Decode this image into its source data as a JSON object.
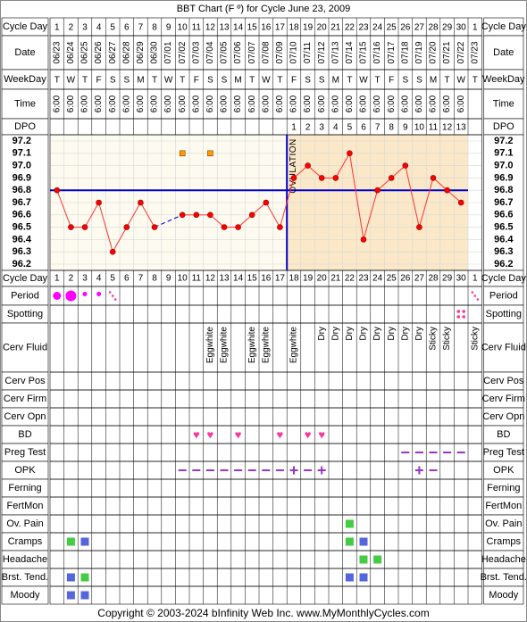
{
  "title": "BBT Chart (F º) for Cycle June 23, 2009",
  "copyright": "Copyright © 2003-2024 bInfinity Web Inc.    www.MyMonthlyCycles.com",
  "row_labels": {
    "cycle_day": "Cycle Day",
    "date": "Date",
    "weekday": "WeekDay",
    "time": "Time",
    "dpo": "DPO",
    "period": "Period",
    "spotting": "Spotting",
    "cerv_fluid": "Cerv Fluid",
    "cerv_pos": "Cerv Pos",
    "cerv_firm": "Cerv Firm",
    "cerv_opn": "Cerv Opn",
    "bd": "BD",
    "preg_test": "Preg Test",
    "opk": "OPK",
    "ferning": "Ferning",
    "fertmon": "FertMon",
    "ov_pain": "Ov. Pain",
    "cramps": "Cramps",
    "headache": "Headache",
    "brst_tend": "Brst. Tend.",
    "moody": "Moody"
  },
  "colors": {
    "grid": "#000000",
    "pre_ov_bg": "#fdfbf0",
    "post_ov_bg": "#fae8c8",
    "coverline": "#0000cc",
    "temp_line": "#ff3333",
    "temp_dot": "#ff0000",
    "period": "#ff00ff",
    "spotting": "#ff3399",
    "heart": "#ff3399",
    "opk": "#9933cc",
    "preg_test": "#9933cc",
    "green": "#44cc44",
    "blue": "#5566dd",
    "label_bg": "#ffffff"
  },
  "chart_data": {
    "type": "line",
    "cycle_days": [
      "1",
      "2",
      "3",
      "4",
      "5",
      "6",
      "7",
      "8",
      "9",
      "10",
      "11",
      "12",
      "13",
      "14",
      "15",
      "16",
      "17",
      "18",
      "19",
      "20",
      "21",
      "22",
      "23",
      "24",
      "25",
      "26",
      "27",
      "28",
      "29",
      "30",
      "1"
    ],
    "dates": [
      "06/23",
      "06/24",
      "06/25",
      "06/26",
      "06/27",
      "06/28",
      "06/29",
      "06/30",
      "07/01",
      "07/02",
      "07/03",
      "07/04",
      "07/05",
      "07/06",
      "07/07",
      "07/08",
      "07/09",
      "07/10",
      "07/11",
      "07/12",
      "07/13",
      "07/14",
      "07/15",
      "07/16",
      "07/17",
      "07/18",
      "07/19",
      "07/20",
      "07/21",
      "07/22",
      "07/23"
    ],
    "weekdays": [
      "T",
      "W",
      "T",
      "F",
      "S",
      "S",
      "M",
      "T",
      "W",
      "T",
      "F",
      "S",
      "S",
      "M",
      "T",
      "W",
      "T",
      "F",
      "S",
      "S",
      "M",
      "T",
      "W",
      "T",
      "F",
      "S",
      "S",
      "M",
      "T",
      "W",
      "T"
    ],
    "times": [
      "6:00",
      "6:00",
      "6:00",
      "6:00",
      "6:00",
      "6:00",
      "6:00",
      "6:00",
      "6:00",
      "6:00",
      "6:00",
      "6:00",
      "6:00",
      "6:00",
      "6:00",
      "6:00",
      "6:00",
      "6:00",
      "6:00",
      "6:00",
      "6:00",
      "6:00",
      "6:00",
      "6:00",
      "6:00",
      "6:00",
      "6:00",
      "6:00",
      "6:00",
      "6:00",
      ""
    ],
    "dpo": [
      "",
      "",
      "",
      "",
      "",
      "",
      "",
      "",
      "",
      "",
      "",
      "",
      "",
      "",
      "",
      "",
      "",
      "1",
      "2",
      "3",
      "4",
      "5",
      "6",
      "7",
      "8",
      "9",
      "10",
      "11",
      "12",
      "13",
      ""
    ],
    "temp_axis_labels": [
      "97.2",
      "97.1",
      "97.0",
      "96.9",
      "96.8",
      "96.7",
      "96.6",
      "96.5",
      "96.4",
      "96.3",
      "96.2"
    ],
    "ylim": [
      96.2,
      97.2
    ],
    "temperatures": [
      96.8,
      96.5,
      96.5,
      96.7,
      96.3,
      96.5,
      96.7,
      96.5,
      null,
      96.6,
      96.6,
      96.6,
      96.5,
      96.5,
      96.6,
      96.7,
      96.5,
      96.9,
      97.0,
      96.9,
      96.9,
      97.1,
      96.4,
      96.8,
      96.9,
      97.0,
      96.5,
      96.9,
      96.8,
      96.7,
      null
    ],
    "dashed_segments": [
      [
        8,
        10
      ]
    ],
    "open_markers": [
      [
        9,
        97.1
      ],
      [
        11,
        97.1
      ]
    ],
    "coverline": 96.8,
    "ovulation_day_index": 16,
    "ovulation_label": "OVULATION",
    "period": [
      "big",
      "big",
      "small",
      "small",
      "tiny",
      "",
      "",
      "",
      "",
      "",
      "",
      "",
      "",
      "",
      "",
      "",
      "",
      "",
      "",
      "",
      "",
      "",
      "",
      "",
      "",
      "",
      "",
      "",
      "",
      "",
      "tiny"
    ],
    "spotting": [
      "",
      "",
      "",
      "",
      "",
      "",
      "",
      "",
      "",
      "",
      "",
      "",
      "",
      "",
      "",
      "",
      "",
      "",
      "",
      "",
      "",
      "",
      "",
      "",
      "",
      "",
      "",
      "",
      "",
      "spot",
      ""
    ],
    "cerv_fluid": [
      "",
      "",
      "",
      "",
      "",
      "",
      "",
      "",
      "",
      "",
      "",
      "Eggwhite",
      "Eggwhite",
      "",
      "Eggwhite",
      "Eggwhite",
      "",
      "Eggwhite",
      "",
      "Dry",
      "Dry",
      "Dry",
      "Dry",
      "Dry",
      "Dry",
      "Dry",
      "Dry",
      "Sticky",
      "Sticky",
      "",
      "Sticky"
    ],
    "bd": [
      "",
      "",
      "",
      "",
      "",
      "",
      "",
      "",
      "",
      "",
      "yes",
      "yes",
      "",
      "yes",
      "",
      "",
      "yes",
      "",
      "yes",
      "yes",
      "",
      "",
      "",
      "",
      "",
      "",
      "",
      "",
      "",
      "",
      ""
    ],
    "preg_test": [
      "",
      "",
      "",
      "",
      "",
      "",
      "",
      "",
      "",
      "",
      "",
      "",
      "",
      "",
      "",
      "",
      "",
      "",
      "",
      "",
      "",
      "",
      "",
      "",
      "",
      "neg",
      "neg",
      "neg",
      "neg",
      "neg",
      ""
    ],
    "opk": [
      "",
      "",
      "",
      "",
      "",
      "",
      "",
      "",
      "",
      "neg",
      "neg",
      "neg",
      "neg",
      "neg",
      "neg",
      "neg",
      "neg",
      "pos",
      "neg",
      "pos",
      "",
      "",
      "",
      "",
      "",
      "",
      "pos",
      "neg",
      "",
      "",
      ""
    ],
    "ov_pain": [
      "",
      "",
      "",
      "",
      "",
      "",
      "",
      "",
      "",
      "",
      "",
      "",
      "",
      "",
      "",
      "",
      "",
      "",
      "",
      "",
      "",
      "green",
      "",
      "",
      "",
      "",
      "",
      "",
      "",
      "",
      ""
    ],
    "cramps": [
      "",
      "green",
      "blue",
      "",
      "",
      "",
      "",
      "",
      "",
      "",
      "",
      "",
      "",
      "",
      "",
      "",
      "",
      "",
      "",
      "",
      "",
      "green",
      "blue",
      "",
      "",
      "",
      "",
      "",
      "",
      "",
      ""
    ],
    "headache": [
      "",
      "",
      "",
      "",
      "",
      "",
      "",
      "",
      "",
      "",
      "",
      "",
      "",
      "",
      "",
      "",
      "",
      "",
      "",
      "",
      "",
      "",
      "green",
      "green",
      "",
      "",
      "",
      "",
      "",
      "",
      ""
    ],
    "brst_tend": [
      "",
      "blue",
      "green",
      "",
      "",
      "",
      "",
      "",
      "",
      "",
      "",
      "",
      "",
      "",
      "",
      "",
      "",
      "",
      "",
      "",
      "",
      "blue",
      "blue",
      "",
      "",
      "",
      "",
      "",
      "",
      "",
      ""
    ],
    "moody": [
      "",
      "blue",
      "blue",
      "",
      "",
      "",
      "",
      "",
      "",
      "",
      "",
      "",
      "",
      "",
      "",
      "",
      "",
      "",
      "",
      "",
      "",
      "",
      "",
      "",
      "",
      "",
      "",
      "",
      "",
      "",
      ""
    ]
  }
}
